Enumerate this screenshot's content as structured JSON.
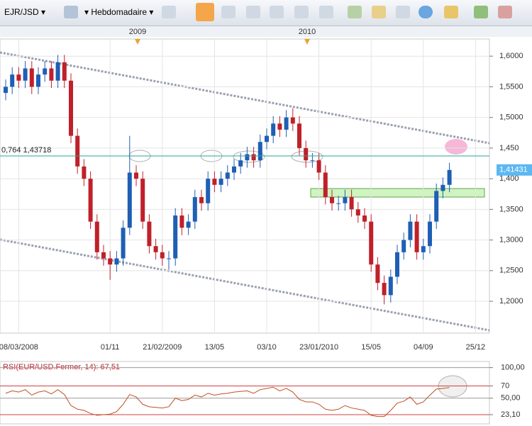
{
  "toolbar": {
    "symbol": "EJR/JSD",
    "period": "Hebdomadaire"
  },
  "chart_data": [
    {
      "type": "candlestick",
      "period_labels": [
        "2009",
        "2010"
      ],
      "categories": [
        null,
        null,
        "08/03/2008",
        null,
        null,
        null,
        null,
        null,
        null,
        null,
        null,
        null,
        null,
        null,
        null,
        null,
        "01/11",
        null,
        null,
        null,
        null,
        null,
        null,
        null,
        "21/02/2009",
        null,
        null,
        null,
        null,
        null,
        null,
        null,
        "13/05",
        null,
        null,
        null,
        null,
        null,
        null,
        null,
        "03/10",
        null,
        null,
        null,
        null,
        null,
        null,
        null,
        "23/01/2010",
        null,
        null,
        null,
        null,
        null,
        null,
        null,
        "15/05",
        null,
        null,
        null,
        null,
        null,
        null,
        null,
        "04/09",
        null,
        null,
        null,
        null,
        null,
        null,
        null,
        "25/12"
      ],
      "open": [
        1.54,
        1.55,
        1.57,
        1.56,
        1.58,
        1.55,
        1.57,
        1.58,
        1.56,
        1.59,
        1.56,
        1.47,
        1.42,
        1.4,
        1.33,
        1.28,
        1.27,
        1.26,
        1.27,
        1.32,
        1.41,
        1.4,
        1.33,
        1.29,
        1.28,
        1.27,
        1.27,
        1.34,
        1.32,
        1.33,
        1.37,
        1.36,
        1.4,
        1.39,
        1.4,
        1.41,
        1.42,
        1.43,
        1.44,
        1.43,
        1.46,
        1.47,
        1.49,
        1.48,
        1.5,
        1.49,
        1.45,
        1.43,
        1.43,
        1.41,
        1.37,
        1.36,
        1.36,
        1.37,
        1.35,
        1.34,
        1.33,
        1.26,
        1.23,
        1.21,
        1.24,
        1.28,
        1.3,
        1.33,
        1.28,
        1.29,
        1.33,
        1.38,
        1.39,
        null,
        null,
        null,
        null
      ],
      "high": [
        1.562,
        1.582,
        1.582,
        1.592,
        1.592,
        1.582,
        1.592,
        1.592,
        1.602,
        1.602,
        1.572,
        1.482,
        1.432,
        1.412,
        1.342,
        1.292,
        1.282,
        1.282,
        1.332,
        1.47,
        1.422,
        1.412,
        1.342,
        1.302,
        1.292,
        1.282,
        1.352,
        1.352,
        1.342,
        1.382,
        1.382,
        1.412,
        1.412,
        1.412,
        1.422,
        1.432,
        1.442,
        1.452,
        1.452,
        1.472,
        1.482,
        1.502,
        1.502,
        1.512,
        1.515,
        1.502,
        1.462,
        1.442,
        1.442,
        1.422,
        1.382,
        1.372,
        1.382,
        1.382,
        1.362,
        1.352,
        1.342,
        1.272,
        1.242,
        1.252,
        1.292,
        1.312,
        1.342,
        1.342,
        1.302,
        1.342,
        1.392,
        1.402,
        1.426,
        null,
        null,
        null,
        null
      ],
      "low": [
        1.528,
        1.538,
        1.548,
        1.548,
        1.538,
        1.538,
        1.558,
        1.548,
        1.548,
        1.548,
        1.458,
        1.408,
        1.388,
        1.318,
        1.268,
        1.258,
        1.235,
        1.248,
        1.258,
        1.308,
        1.388,
        1.318,
        1.278,
        1.268,
        1.258,
        1.252,
        1.258,
        1.308,
        1.308,
        1.318,
        1.348,
        1.348,
        1.378,
        1.378,
        1.388,
        1.398,
        1.408,
        1.418,
        1.418,
        1.418,
        1.448,
        1.458,
        1.468,
        1.468,
        1.478,
        1.438,
        1.418,
        1.418,
        1.398,
        1.358,
        1.348,
        1.348,
        1.348,
        1.338,
        1.328,
        1.318,
        1.248,
        1.218,
        1.195,
        1.198,
        1.228,
        1.268,
        1.288,
        1.268,
        1.268,
        1.278,
        1.318,
        1.368,
        1.378,
        null,
        null,
        null,
        null
      ],
      "close": [
        1.55,
        1.57,
        1.56,
        1.58,
        1.55,
        1.57,
        1.58,
        1.56,
        1.59,
        1.56,
        1.47,
        1.42,
        1.4,
        1.33,
        1.28,
        1.27,
        1.26,
        1.27,
        1.32,
        1.41,
        1.4,
        1.33,
        1.29,
        1.28,
        1.27,
        1.27,
        1.34,
        1.32,
        1.33,
        1.37,
        1.36,
        1.4,
        1.39,
        1.4,
        1.41,
        1.42,
        1.43,
        1.44,
        1.43,
        1.46,
        1.47,
        1.49,
        1.48,
        1.5,
        1.49,
        1.45,
        1.43,
        1.43,
        1.41,
        1.37,
        1.36,
        1.36,
        1.37,
        1.35,
        1.34,
        1.33,
        1.26,
        1.23,
        1.21,
        1.24,
        1.28,
        1.3,
        1.33,
        1.28,
        1.29,
        1.33,
        1.38,
        1.39,
        1.41431,
        null,
        null,
        null,
        null
      ],
      "up_color": "#1f5fb4",
      "down_color": "#c0202a",
      "ylim": [
        1.148,
        1.628
      ],
      "yticks": [
        {
          "value": 1.6,
          "label": "1,6000"
        },
        {
          "value": 1.55,
          "label": "1,5500"
        },
        {
          "value": 1.5,
          "label": "1,5000"
        },
        {
          "value": 1.45,
          "label": "1,450"
        },
        {
          "value": 1.4,
          "label": "1,400"
        },
        {
          "value": 1.35,
          "label": "1,3500"
        },
        {
          "value": 1.3,
          "label": "1,3000"
        },
        {
          "value": 1.25,
          "label": "1,2500"
        },
        {
          "value": 1.2,
          "label": "1,2000"
        }
      ],
      "hline": {
        "value": 1.43718,
        "label": "0,764 1,43718",
        "color": "#2aa39a"
      },
      "last_price": {
        "value": 1.41431,
        "label": "1,41431"
      },
      "grid": true
    },
    {
      "type": "line",
      "title": "RSI(EUR/USD.Fermer, 14): 67,51",
      "color": "#c0501f",
      "values": [
        58,
        62,
        60,
        64,
        55,
        60,
        62,
        57,
        64,
        56,
        38,
        32,
        30,
        25,
        22,
        23,
        24,
        28,
        40,
        56,
        52,
        40,
        36,
        35,
        34,
        36,
        50,
        46,
        48,
        55,
        52,
        58,
        55,
        57,
        58,
        60,
        61,
        62,
        58,
        64,
        66,
        68,
        62,
        66,
        60,
        48,
        44,
        44,
        40,
        32,
        30,
        32,
        38,
        34,
        32,
        30,
        22,
        20,
        20,
        30,
        42,
        45,
        52,
        40,
        44,
        55,
        65,
        66,
        67.51,
        null,
        null,
        null,
        null
      ],
      "ylim": [
        8,
        110
      ],
      "yticks": [
        {
          "value": 100,
          "label": "100,00"
        },
        {
          "value": 70,
          "label": "70"
        },
        {
          "value": 50,
          "label": "50,00"
        },
        {
          "value": 23.1,
          "label": "23,10"
        }
      ]
    }
  ]
}
